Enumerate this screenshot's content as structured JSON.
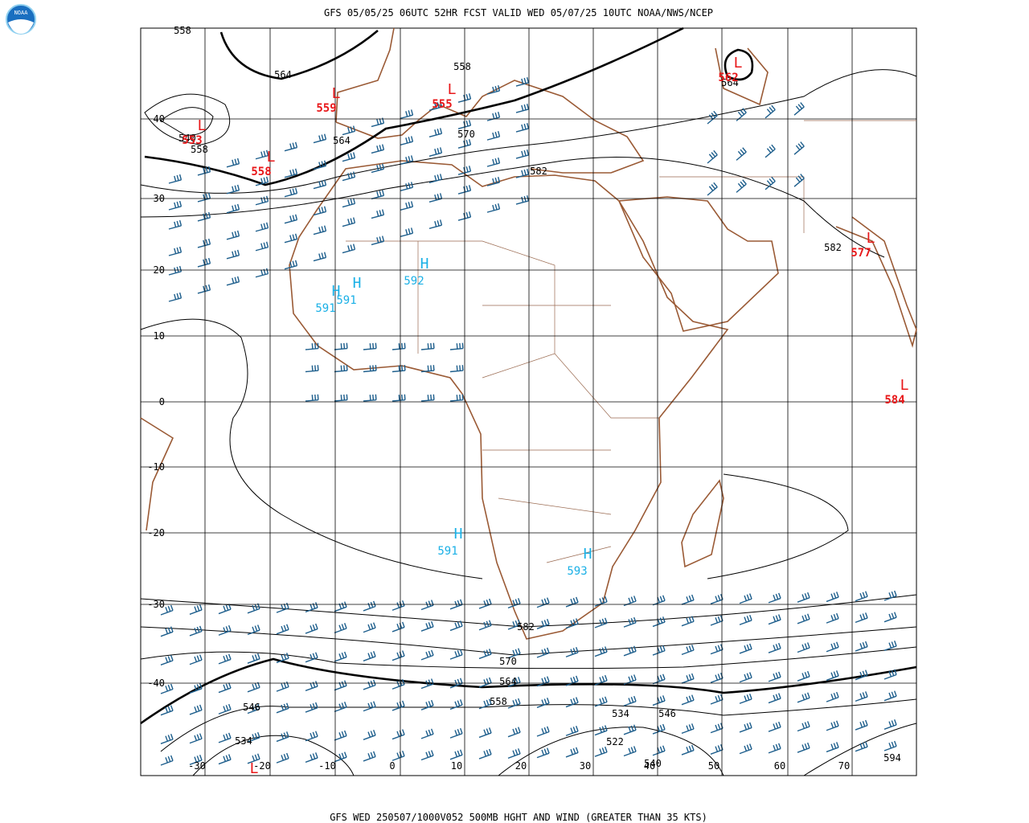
{
  "header": {
    "logo": "NOAA",
    "title": "GFS 05/05/25 06UTC 52HR FCST VALID WED 05/07/25 10UTC NOAA/NWS/NCEP"
  },
  "footer": "GFS WED 250507/1000V052 500MB HGHT AND WIND (GREATER THAN 35 KTS)",
  "map": {
    "lon_labels": [
      -30,
      -20,
      -10,
      0,
      10,
      20,
      30,
      40,
      50,
      60,
      70
    ],
    "lat_labels": [
      40,
      30,
      20,
      10,
      0,
      -10,
      -20,
      -30,
      -40
    ],
    "contour_labels": [
      558,
      564,
      558,
      564,
      570,
      564,
      558,
      540,
      582,
      582,
      582,
      570,
      564,
      558,
      534,
      546,
      522,
      540,
      546,
      534,
      594
    ],
    "highs": [
      {
        "label": "H",
        "value": 591
      },
      {
        "label": "H",
        "value": 591
      },
      {
        "label": "H",
        "value": 592
      },
      {
        "label": "H",
        "value": 591
      },
      {
        "label": "H",
        "value": 593
      }
    ],
    "lows": [
      {
        "label": "L",
        "value": 559
      },
      {
        "label": "L",
        "value": 555
      },
      {
        "label": "L",
        "value": 553
      },
      {
        "label": "L",
        "value": 558
      },
      {
        "label": "L",
        "value": 562
      },
      {
        "label": "L",
        "value": 577
      },
      {
        "label": "L",
        "value": 584
      },
      {
        "label": "L"
      }
    ]
  }
}
